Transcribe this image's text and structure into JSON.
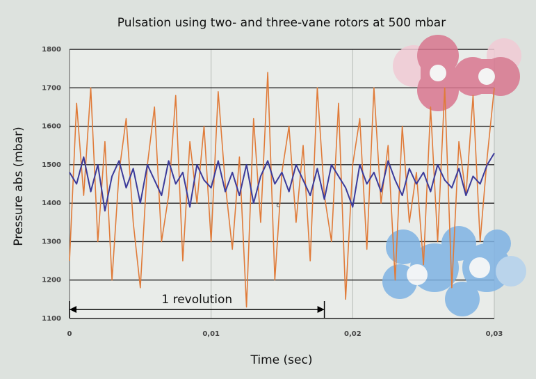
{
  "chart_data": {
    "type": "line",
    "title": "Pulsation using two- and three-vane rotors at 500 mbar",
    "x_label": "Time (sec)",
    "y_label": "Pressure abs (mbar)",
    "x": [
      0,
      0.0005,
      0.001,
      0.0015,
      0.002,
      0.0025,
      0.003,
      0.0035,
      0.004,
      0.0045,
      0.005,
      0.0055,
      0.006,
      0.0065,
      0.007,
      0.0075,
      0.008,
      0.0085,
      0.009,
      0.0095,
      0.01,
      0.0105,
      0.011,
      0.0115,
      0.012,
      0.0125,
      0.013,
      0.0135,
      0.014,
      0.0145,
      0.015,
      0.0155,
      0.016,
      0.0165,
      0.017,
      0.0175,
      0.018,
      0.0185,
      0.019,
      0.0195,
      0.02,
      0.0205,
      0.021,
      0.0215,
      0.022,
      0.0225,
      0.023,
      0.0235,
      0.024,
      0.0245,
      0.025,
      0.0255,
      0.026,
      0.0265,
      0.027,
      0.0275,
      0.028,
      0.0285,
      0.029,
      0.0295,
      0.03
    ],
    "series": [
      {
        "color": "#e07b39",
        "values": [
          1250,
          1660,
          1420,
          1700,
          1300,
          1560,
          1200,
          1480,
          1620,
          1350,
          1180,
          1500,
          1650,
          1300,
          1420,
          1680,
          1250,
          1560,
          1400,
          1600,
          1300,
          1690,
          1450,
          1280,
          1520,
          1130,
          1620,
          1350,
          1740,
          1200,
          1480,
          1600,
          1350,
          1550,
          1250,
          1700,
          1420,
          1300,
          1660,
          1150,
          1500,
          1620,
          1280,
          1700,
          1400,
          1550,
          1200,
          1600,
          1350,
          1480,
          1240,
          1650,
          1300,
          1700,
          1180,
          1560,
          1420,
          1680,
          1300,
          1520,
          1700
        ]
      },
      {
        "color": "#3b3a9a",
        "values": [
          1480,
          1450,
          1520,
          1430,
          1500,
          1380,
          1470,
          1510,
          1440,
          1490,
          1400,
          1500,
          1460,
          1420,
          1510,
          1450,
          1480,
          1390,
          1500,
          1460,
          1440,
          1510,
          1430,
          1480,
          1420,
          1500,
          1400,
          1470,
          1510,
          1450,
          1480,
          1430,
          1500,
          1460,
          1420,
          1490,
          1410,
          1500,
          1470,
          1440,
          1390,
          1500,
          1450,
          1480,
          1430,
          1510,
          1460,
          1420,
          1490,
          1450,
          1480,
          1430,
          1500,
          1460,
          1440,
          1490,
          1420,
          1470,
          1450,
          1500,
          1530
        ]
      }
    ],
    "xlim": [
      0,
      0.03
    ],
    "xticks": [
      0,
      {
        "value": 0.01,
        "label": "0,01"
      },
      {
        "value": 0.02,
        "label": "0,02"
      },
      {
        "value": 0.03,
        "label": "0,03"
      }
    ],
    "ylim": [
      1100,
      1800
    ],
    "yticks": [
      1100,
      1200,
      1300,
      1400,
      1500,
      1600,
      1700,
      1800
    ],
    "grid": true,
    "revolution": {
      "label": "1 revolution",
      "x": [
        0,
        0.018
      ]
    },
    "note": {
      "text": "c",
      "x": 0.0146,
      "y": 1395
    }
  }
}
